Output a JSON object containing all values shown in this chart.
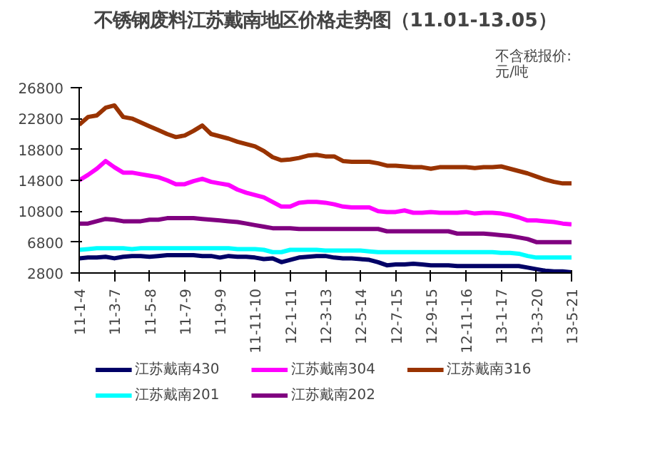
{
  "chart_data": {
    "type": "line",
    "title": "不锈钢废料江苏戴南地区价格走势图（11.01-13.05）",
    "annotations": [
      "不含税报价:\n元/吨"
    ],
    "categories": [
      "11-1-4",
      null,
      null,
      null,
      "11-3-7",
      null,
      null,
      null,
      "11-5-8",
      null,
      null,
      null,
      "11-7-9",
      null,
      null,
      null,
      "11-9-9",
      null,
      null,
      null,
      "11-11-10",
      null,
      null,
      null,
      "12-1-11",
      null,
      null,
      null,
      "12-3-13",
      null,
      null,
      null,
      "12-5-14",
      null,
      null,
      null,
      "12-7-15",
      null,
      null,
      null,
      "12-9-15",
      null,
      null,
      null,
      "12-11-16",
      null,
      null,
      null,
      "13-1-17",
      null,
      null,
      null,
      "13-3-20",
      null,
      null,
      null,
      "13-5-21"
    ],
    "ylim": [
      2800,
      26800
    ],
    "yticks": [
      2800,
      6800,
      10800,
      14800,
      18800,
      22800,
      26800
    ],
    "grid": false,
    "legend": "bottom",
    "marker": "none",
    "line_style": "solid",
    "series": [
      {
        "name": "江苏戴南430",
        "color": "#000066",
        "values": [
          4700,
          4800,
          4800,
          4900,
          4700,
          4900,
          5000,
          5000,
          4900,
          5000,
          5100,
          5100,
          5100,
          5100,
          5000,
          5000,
          4800,
          5000,
          4900,
          4900,
          4800,
          4600,
          4700,
          4200,
          4500,
          4800,
          4900,
          5000,
          5000,
          4800,
          4700,
          4700,
          4600,
          4500,
          4200,
          3800,
          3900,
          3900,
          4000,
          3900,
          3800,
          3800,
          3800,
          3700,
          3700,
          3700,
          3700,
          3700,
          3700,
          3700,
          3700,
          3500,
          3300,
          3100,
          3000,
          3000,
          2900
        ]
      },
      {
        "name": "江苏戴南304",
        "color": "#ff00ff",
        "values": [
          14800,
          15500,
          16300,
          17300,
          16500,
          15800,
          15800,
          15600,
          15400,
          15200,
          14800,
          14300,
          14300,
          14700,
          15000,
          14600,
          14400,
          14200,
          13600,
          13200,
          12900,
          12600,
          12000,
          11400,
          11400,
          11900,
          12000,
          12000,
          11900,
          11700,
          11400,
          11300,
          11300,
          11300,
          10800,
          10700,
          10700,
          10900,
          10600,
          10600,
          10700,
          10600,
          10600,
          10600,
          10700,
          10500,
          10600,
          10600,
          10500,
          10300,
          10000,
          9600,
          9600,
          9500,
          9400,
          9200,
          9100
        ]
      },
      {
        "name": "江苏戴南316",
        "color": "#993300",
        "values": [
          22000,
          23000,
          23200,
          24200,
          24500,
          23000,
          22800,
          22300,
          21800,
          21300,
          20800,
          20400,
          20600,
          21200,
          21900,
          20800,
          20500,
          20200,
          19800,
          19500,
          19200,
          18600,
          17800,
          17400,
          17500,
          17700,
          18000,
          18100,
          17900,
          17900,
          17300,
          17200,
          17200,
          17200,
          17000,
          16700,
          16700,
          16600,
          16500,
          16500,
          16300,
          16500,
          16500,
          16500,
          16500,
          16400,
          16500,
          16500,
          16600,
          16300,
          16000,
          15700,
          15300,
          14900,
          14600,
          14400,
          14400
        ]
      },
      {
        "name": "江苏戴南201",
        "color": "#00ffff",
        "values": [
          5800,
          5900,
          6000,
          6000,
          6000,
          6000,
          5900,
          6000,
          6000,
          6000,
          6000,
          6000,
          6000,
          6000,
          6000,
          6000,
          6000,
          6000,
          5900,
          5900,
          5900,
          5800,
          5500,
          5500,
          5800,
          5800,
          5800,
          5800,
          5700,
          5700,
          5700,
          5700,
          5700,
          5600,
          5500,
          5500,
          5500,
          5500,
          5500,
          5500,
          5500,
          5500,
          5500,
          5500,
          5500,
          5500,
          5500,
          5500,
          5400,
          5400,
          5300,
          5000,
          4800,
          4800,
          4800,
          4800,
          4800
        ]
      },
      {
        "name": "江苏戴南202",
        "color": "#800080",
        "values": [
          9200,
          9200,
          9500,
          9800,
          9700,
          9500,
          9500,
          9500,
          9700,
          9700,
          9900,
          9900,
          9900,
          9900,
          9800,
          9700,
          9600,
          9500,
          9400,
          9200,
          9000,
          8800,
          8600,
          8600,
          8600,
          8500,
          8500,
          8500,
          8500,
          8500,
          8500,
          8500,
          8500,
          8500,
          8500,
          8200,
          8200,
          8200,
          8200,
          8200,
          8200,
          8200,
          8200,
          7900,
          7900,
          7900,
          7900,
          7800,
          7700,
          7600,
          7400,
          7200,
          6800,
          6800,
          6800,
          6800,
          6800
        ]
      }
    ]
  }
}
